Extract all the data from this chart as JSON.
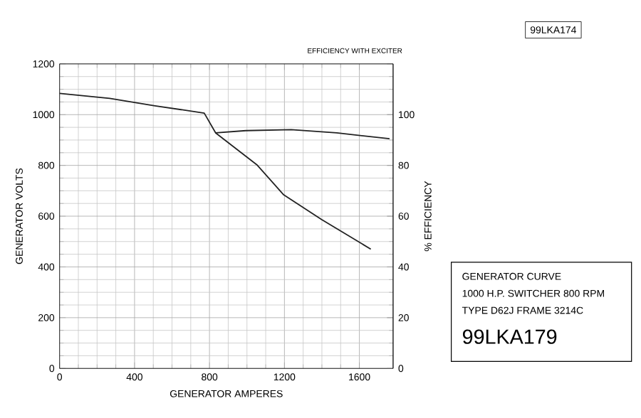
{
  "chart_data": {
    "type": "line",
    "title": "GENERATOR CURVE",
    "subtitle": "1000 H.P. SWITCHER 800 RPM",
    "xlabel": "GENERATOR AMPERES",
    "ylabel": "GENERATOR VOLTS",
    "y2label": "% EFFICIENCY",
    "xlim": [
      0,
      1780
    ],
    "xticks": [
      0,
      400,
      800,
      1200,
      1600
    ],
    "ylim": [
      0,
      1200
    ],
    "yticks": [
      0,
      200,
      400,
      600,
      800,
      1000,
      1200
    ],
    "y2lim": [
      0,
      120
    ],
    "y2ticks": [
      0,
      20,
      40,
      60,
      80,
      100
    ],
    "grid": true,
    "marker": "none",
    "line_style": "solid",
    "series": [
      {
        "color": "#222222",
        "x": [
          0,
          267,
          509,
          772,
          833,
          1055,
          1196,
          1398,
          1661
        ],
        "values": [
          1084,
          1064,
          1035,
          1006,
          928,
          801,
          684,
          587,
          470
        ]
      },
      {
        "color": "#222222",
        "axis": "y2",
        "x": [
          833,
          994,
          1236,
          1479,
          1761
        ],
        "values": [
          92.8,
          93.7,
          94.1,
          92.8,
          90.5
        ]
      }
    ],
    "annotations": [
      "EFFICIENCY WITH EXCITER",
      "TYPE D62J FRAME 3214C",
      "99LKA179",
      "99LKA174"
    ]
  }
}
